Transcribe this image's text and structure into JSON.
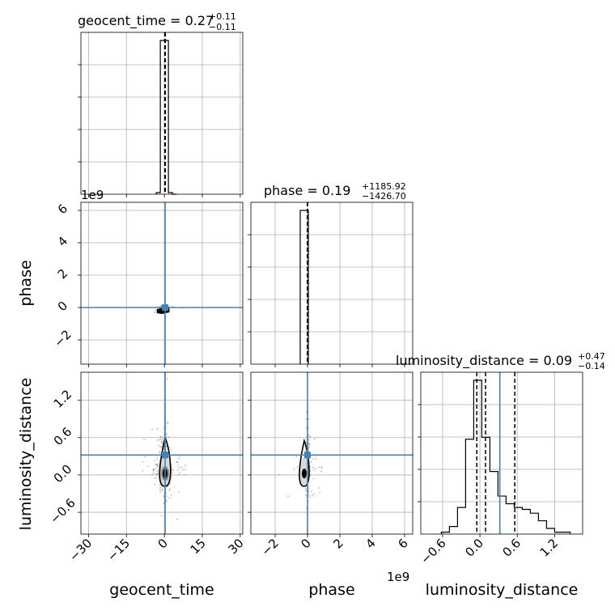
{
  "chart_data": {
    "type": "corner",
    "truth_color": "#4682b4",
    "parameters": [
      "geocent_time",
      "phase",
      "luminosity_distance"
    ],
    "axis_labels": {
      "geocent_time": "geocent_time",
      "phase": "phase",
      "luminosity_distance": "luminosity_distance"
    },
    "offset_labels": {
      "phase_y": "1e9",
      "phase_x": "1e9"
    },
    "titles": [
      {
        "param": "geocent_time",
        "text": "geocent_time = 0.27",
        "plus": "+0.11",
        "minus": "−0.11"
      },
      {
        "param": "phase",
        "text": "phase = 0.19",
        "plus": "+1185.92",
        "minus": "−1426.70"
      },
      {
        "param": "luminosity_distance",
        "text": "luminosity_distance = 0.09",
        "plus": "+0.47",
        "minus": "−0.14"
      }
    ],
    "ranges": {
      "geocent_time": [
        -33,
        31
      ],
      "phase_e9": [
        -3.5,
        6.5
      ],
      "luminosity_distance": [
        -0.95,
        1.65
      ]
    },
    "ticks": {
      "geocent_time": {
        "values": [
          -30,
          -15,
          0,
          15,
          30
        ],
        "labels": [
          "−30",
          "−15",
          "0",
          "15",
          "30"
        ]
      },
      "phase_e9": {
        "values": [
          -2,
          0,
          2,
          4,
          6
        ],
        "labels": [
          "−2",
          "0",
          "2",
          "4",
          "6"
        ]
      },
      "luminosity_distance": {
        "values": [
          -0.6,
          0.0,
          0.6,
          1.2
        ],
        "labels": [
          "−0.6",
          "0.0",
          "0.6",
          "1.2"
        ]
      }
    },
    "truths": {
      "geocent_time": 0.3,
      "phase_e9": 0.0,
      "luminosity_distance": 0.32
    },
    "quantiles": {
      "geocent_time": [
        0.16,
        0.27,
        0.38
      ],
      "phase_e9": [
        -1.4e-06,
        0.0,
        1.2e-06
      ],
      "luminosity_distance": [
        -0.05,
        0.09,
        0.56
      ]
    },
    "hist_geocent_time": {
      "edges": [
        -3.2,
        -1.6,
        0.0,
        1.6,
        3.2,
        4.8
      ],
      "counts": [
        0.01,
        0.95,
        0.95,
        0.01,
        0.0
      ]
    },
    "hist_phase_e9": {
      "edges": [
        -0.45,
        0.0,
        0.05
      ],
      "counts": [
        0.95,
        0.95
      ]
    },
    "hist_luminosity_distance": {
      "edges": [
        -0.62,
        -0.49,
        -0.36,
        -0.23,
        -0.1,
        0.03,
        0.16,
        0.29,
        0.42,
        0.55,
        0.68,
        0.81,
        0.94,
        1.07,
        1.2,
        1.33,
        1.45
      ],
      "counts": [
        0.01,
        0.04,
        0.14,
        0.5,
        0.81,
        0.51,
        0.33,
        0.2,
        0.16,
        0.14,
        0.13,
        0.11,
        0.07,
        0.03,
        0.01,
        0.01
      ]
    }
  }
}
